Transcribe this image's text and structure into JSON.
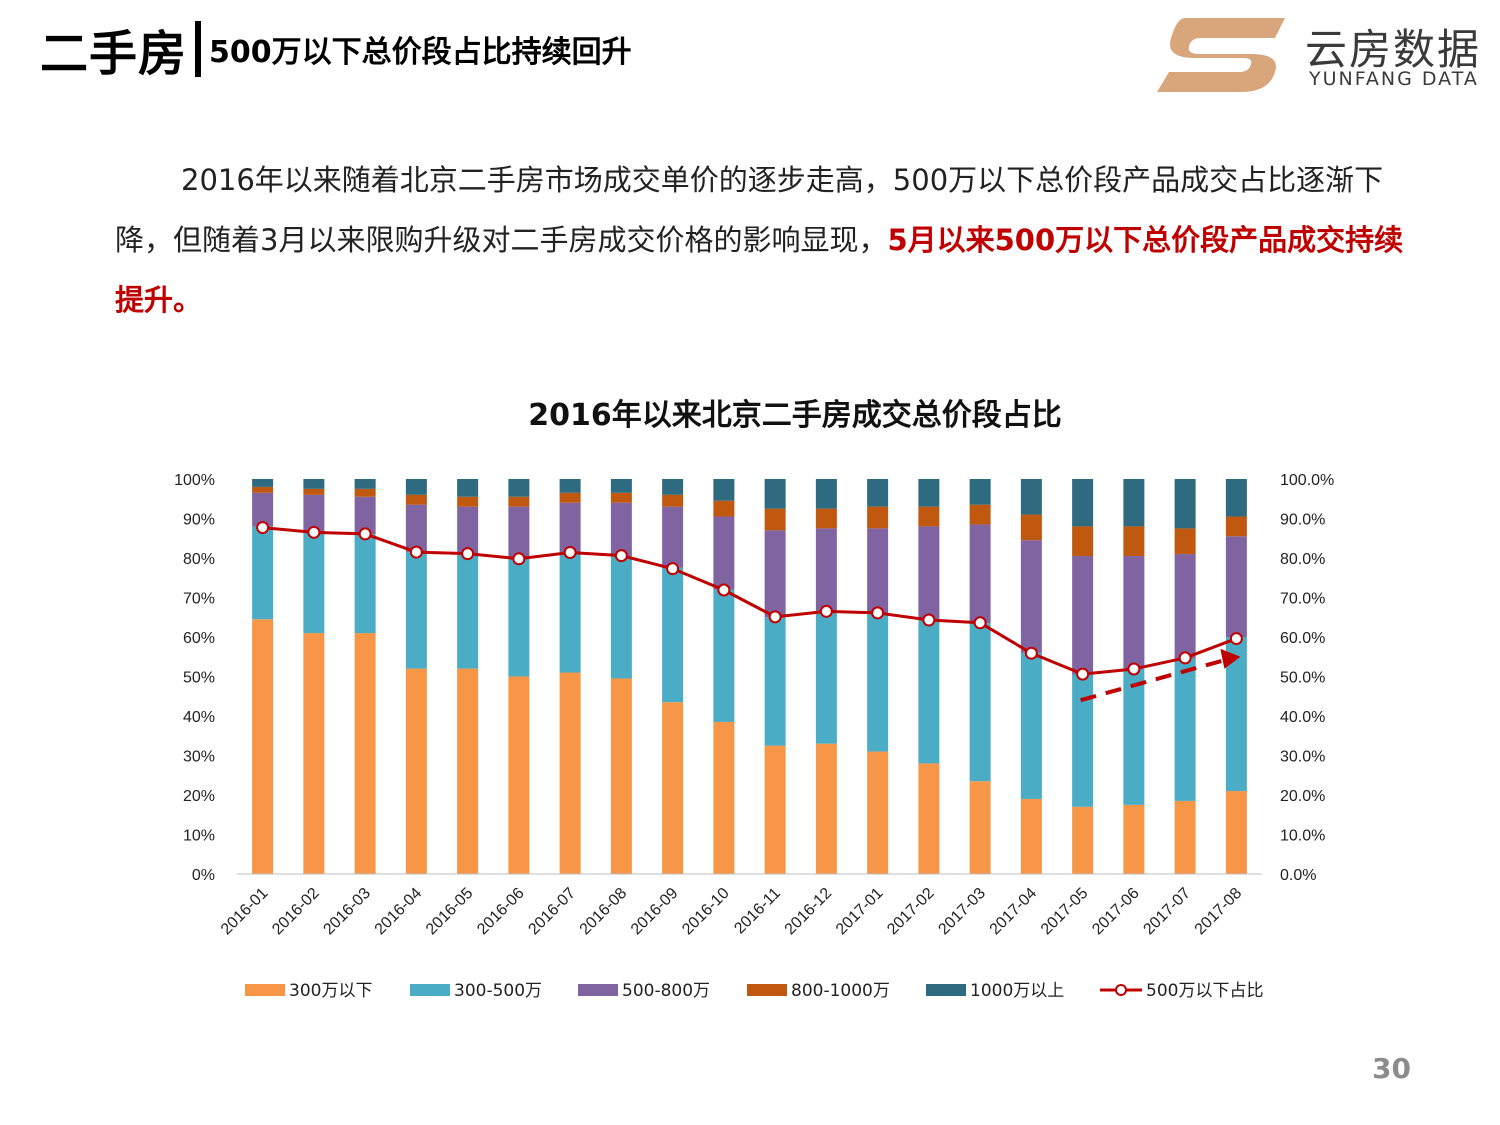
{
  "header": {
    "title": "二手房",
    "subtitle": "500万以下总价段占比持续回升"
  },
  "logo": {
    "cn": "云房数据",
    "en": "YUNFANG DATA"
  },
  "paragraph": {
    "normal": "2016年以来随着北京二手房市场成交单价的逐步走高，500万以下总价段产品成交占比逐渐下降，但随着3月以来限购升级对二手房成交价格的影响显现，",
    "highlight": "5月以来500万以下总价段产品成交持续提升。"
  },
  "page_number": "30",
  "colors": {
    "s300": "#f79646",
    "s300_500": "#4bacc6",
    "s500_800": "#8064a2",
    "s800_1000": "#c0580f",
    "s1000": "#2e6b80",
    "line": "#c00000",
    "highlight": "#c00000"
  },
  "chart_data": {
    "type": "bar",
    "stacked": true,
    "title": "2016年以来北京二手房成交总价段占比",
    "categories": [
      "2016-01",
      "2016-02",
      "2016-03",
      "2016-04",
      "2016-05",
      "2016-06",
      "2016-07",
      "2016-08",
      "2016-09",
      "2016-10",
      "2016-11",
      "2016-12",
      "2017-01",
      "2017-02",
      "2017-03",
      "2017-04",
      "2017-05",
      "2017-06",
      "2017-07",
      "2017-08"
    ],
    "y_left_ticks": [
      "0%",
      "10%",
      "20%",
      "30%",
      "40%",
      "50%",
      "60%",
      "70%",
      "80%",
      "90%",
      "100%"
    ],
    "y_right_ticks": [
      "0.0%",
      "10.0%",
      "20.0%",
      "30.0%",
      "40.0%",
      "50.0%",
      "60.0%",
      "70.0%",
      "80.0%",
      "90.0%",
      "100.0%"
    ],
    "ylim": [
      0,
      100
    ],
    "series": [
      {
        "name": "300万以下",
        "color_key": "s300",
        "values": [
          64.5,
          61,
          61,
          52,
          52,
          50,
          51,
          49.5,
          43.5,
          38.5,
          32.5,
          33,
          31,
          28,
          23.5,
          19,
          17,
          17.5,
          18.5,
          21
        ]
      },
      {
        "name": "300-500万",
        "color_key": "s300_500",
        "values": [
          23.5,
          25.5,
          25,
          29.5,
          29,
          30,
          30.5,
          31,
          34,
          33.5,
          32.5,
          33.5,
          35,
          36.5,
          40,
          37,
          33.5,
          34.5,
          36,
          39
        ]
      },
      {
        "name": "500-800万",
        "color_key": "s500_800",
        "values": [
          8.5,
          9.5,
          9.5,
          12,
          12,
          13,
          12.5,
          13.5,
          15.5,
          18.5,
          22,
          21,
          21.5,
          23.5,
          25,
          28.5,
          30,
          28.5,
          26.5,
          25.5
        ]
      },
      {
        "name": "800-1000万",
        "color_key": "s800_1000",
        "values": [
          1.5,
          1.5,
          2,
          2.5,
          2.5,
          2.5,
          2.5,
          2.5,
          3,
          4,
          5.5,
          5,
          5.5,
          5,
          5,
          6.5,
          7.5,
          7.5,
          6.5,
          5
        ]
      },
      {
        "name": "1000万以上",
        "color_key": "s1000",
        "values": [
          2,
          2.5,
          2.5,
          4,
          4.5,
          4.5,
          3.5,
          3.5,
          4,
          5.5,
          7.5,
          7.5,
          7,
          7,
          6.5,
          9,
          12,
          12,
          12.5,
          9.5
        ]
      }
    ],
    "line_series": {
      "name": "500万以下占比",
      "axis": "right",
      "color_key": "line",
      "values": [
        87.7,
        86.5,
        86.1,
        81.5,
        81.1,
        79.8,
        81.4,
        80.6,
        77.3,
        71.9,
        65.1,
        66.5,
        66.1,
        64.3,
        63.6,
        55.9,
        50.6,
        51.9,
        54.7,
        59.6
      ]
    },
    "trend_arrow": {
      "from_index": 16,
      "to_index": 19,
      "from_value": 44,
      "to_value": 54.5,
      "style": "dashed"
    },
    "legend_position": "bottom"
  }
}
